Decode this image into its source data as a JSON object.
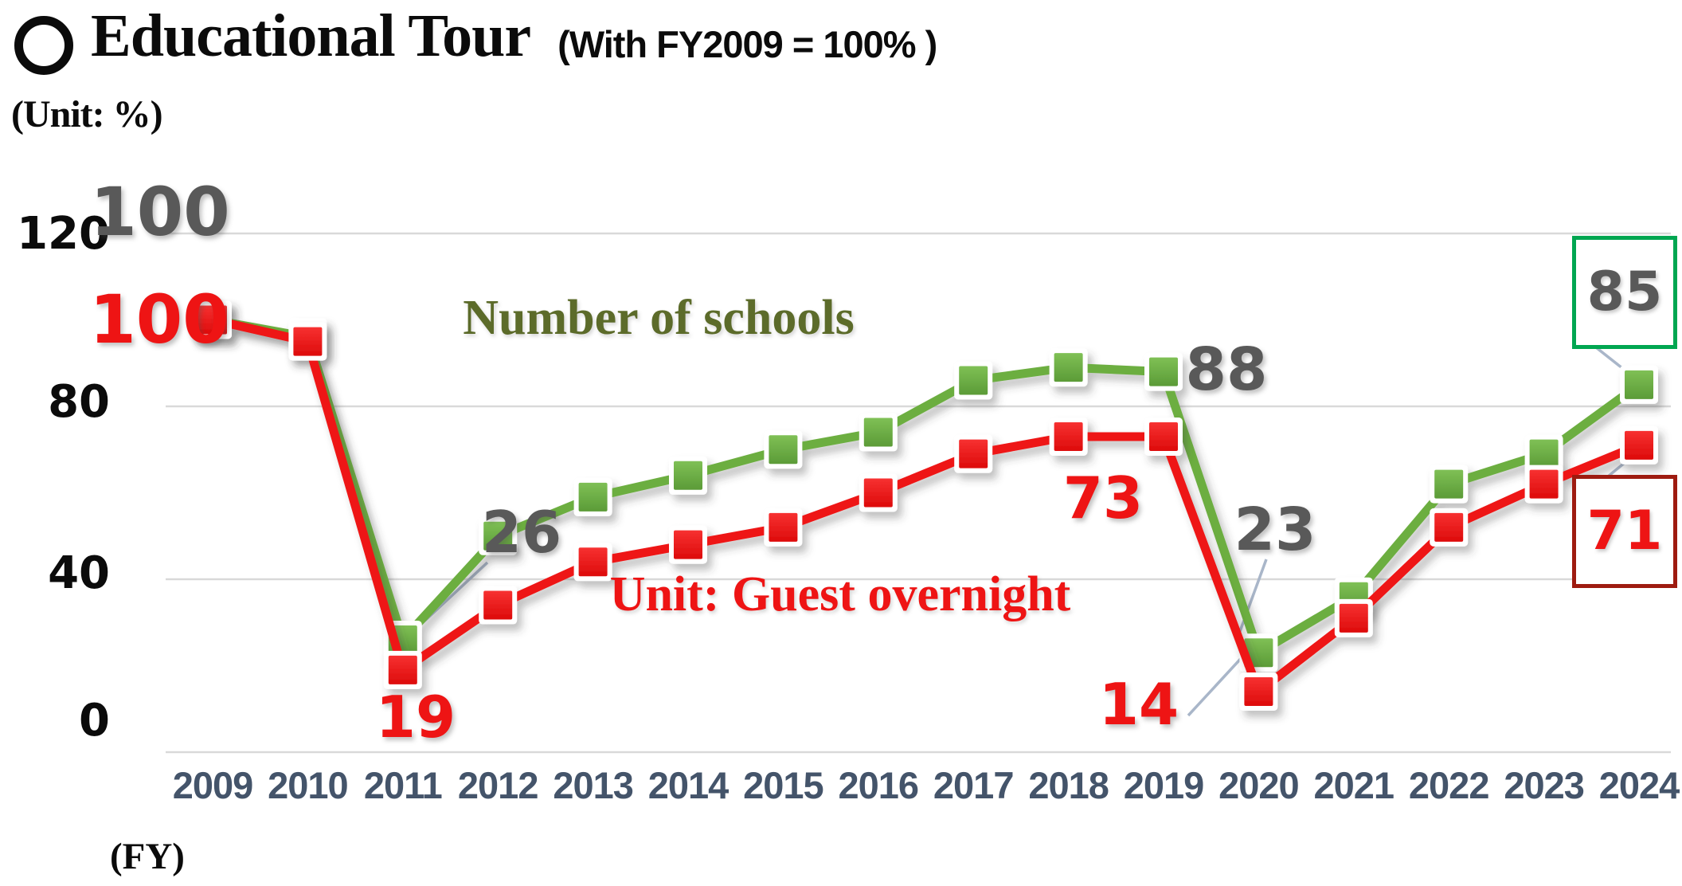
{
  "title": {
    "bullet_icon": "circle-outline",
    "main": "Educational Tour",
    "note": "(With FY2009 = 100% )",
    "unit_note": "(Unit: %)"
  },
  "colors": {
    "schools_line": "#6CAE3F",
    "schools_fill_top": "#7FC055",
    "schools_fill_bottom": "#5B9B37",
    "guests_line": "#EE1414",
    "guests_fill_top": "#F73131",
    "guests_fill_bottom": "#DD0B0B",
    "schools_value_text": "#595959",
    "guests_value_text": "#EE1414",
    "schools_note_text": "#5C6B2A",
    "grid": "#D9D9D9",
    "axis_year_text": "#44546A",
    "axis_value_text": "#0B0B0B",
    "leader": "#A9B6C9",
    "box_green_border": "#00A651",
    "box_red_border": "#9E1B10"
  },
  "chart_data": {
    "type": "line",
    "title": "Educational Tour (With FY2009 = 100% )",
    "unit": "%",
    "xlabel": "(FY)",
    "ylabel": "",
    "ylim": [
      0,
      120
    ],
    "y_ticks": [
      120,
      80,
      40,
      0
    ],
    "grid": "horizontal",
    "legend_position": "inline-annotations",
    "categories": [
      "2009",
      "2010",
      "2011",
      "2012",
      "2013",
      "2014",
      "2015",
      "2016",
      "2017",
      "2018",
      "2019",
      "2020",
      "2021",
      "2022",
      "2023",
      "2024"
    ],
    "series": [
      {
        "name": "Number of schools",
        "values": [
          100,
          96,
          26,
          50,
          59,
          64,
          70,
          74,
          86,
          89,
          88,
          23,
          36,
          62,
          69,
          85
        ]
      },
      {
        "name": "Unit: Guest overnight",
        "values": [
          100,
          95,
          19,
          34,
          44,
          48,
          52,
          60,
          69,
          73,
          73,
          14,
          31,
          52,
          62,
          71
        ]
      }
    ],
    "callouts": [
      {
        "year": "2009",
        "series": 0,
        "text": "100",
        "boxed": false
      },
      {
        "year": "2009",
        "series": 1,
        "text": "100",
        "boxed": false
      },
      {
        "year": "2011",
        "series": 0,
        "text": "26",
        "boxed": false
      },
      {
        "year": "2011",
        "series": 1,
        "text": "19",
        "boxed": false
      },
      {
        "year": "2019",
        "series": 0,
        "text": "88",
        "boxed": false
      },
      {
        "year": "2019",
        "series": 1,
        "text": "73",
        "boxed": false
      },
      {
        "year": "2020",
        "series": 0,
        "text": "23",
        "boxed": false
      },
      {
        "year": "2020",
        "series": 1,
        "text": "14",
        "boxed": false
      },
      {
        "year": "2024",
        "series": 0,
        "text": "85",
        "boxed": true
      },
      {
        "year": "2024",
        "series": 1,
        "text": "71",
        "boxed": true
      }
    ]
  }
}
